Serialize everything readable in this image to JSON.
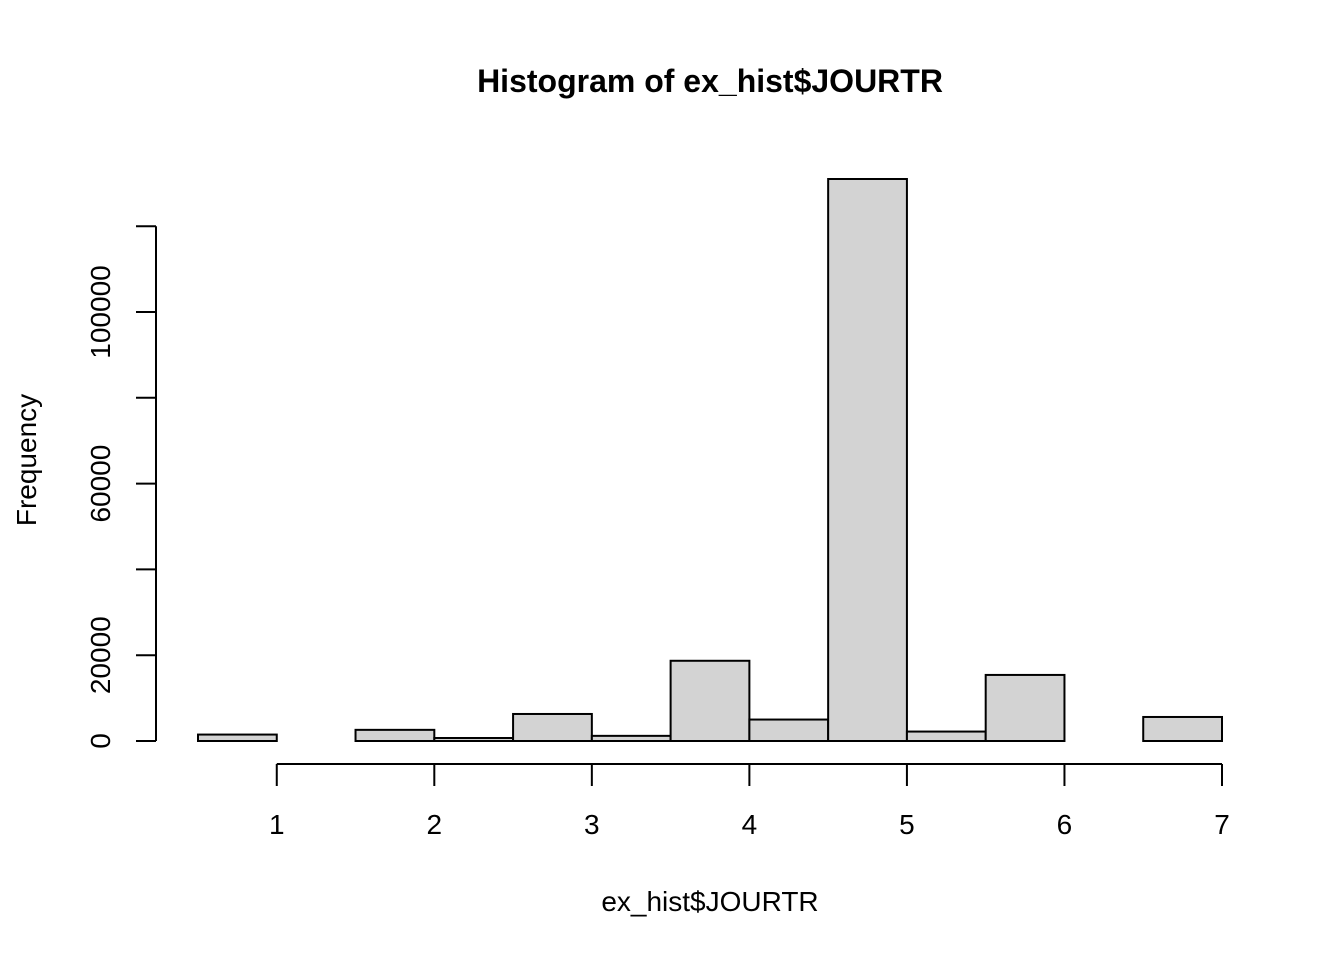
{
  "chart_data": {
    "type": "bar",
    "title": "Histogram of ex_hist$JOURTR",
    "xlabel": "ex_hist$JOURTR",
    "ylabel": "Frequency",
    "bins": [
      {
        "start": 0.5,
        "end": 1.0,
        "count": 1500
      },
      {
        "start": 1.0,
        "end": 1.5,
        "count": 0
      },
      {
        "start": 1.5,
        "end": 2.0,
        "count": 2600
      },
      {
        "start": 2.0,
        "end": 2.5,
        "count": 700
      },
      {
        "start": 2.5,
        "end": 3.0,
        "count": 6300
      },
      {
        "start": 3.0,
        "end": 3.5,
        "count": 1200
      },
      {
        "start": 3.5,
        "end": 4.0,
        "count": 18700
      },
      {
        "start": 4.0,
        "end": 4.5,
        "count": 5000
      },
      {
        "start": 4.5,
        "end": 5.0,
        "count": 131000
      },
      {
        "start": 5.0,
        "end": 5.5,
        "count": 2200
      },
      {
        "start": 5.5,
        "end": 6.0,
        "count": 15400
      },
      {
        "start": 6.0,
        "end": 6.5,
        "count": 0
      },
      {
        "start": 6.5,
        "end": 7.0,
        "count": 5600
      }
    ],
    "x_ticks": [
      1,
      2,
      3,
      4,
      5,
      6,
      7
    ],
    "x_tick_labels": [
      "1",
      "2",
      "3",
      "4",
      "5",
      "6",
      "7"
    ],
    "y_ticks": [
      0,
      20000,
      40000,
      60000,
      80000,
      100000,
      120000
    ],
    "y_tick_labels": [
      "0",
      "20000",
      "",
      "60000",
      "",
      "100000",
      ""
    ],
    "xlim": [
      0.5,
      7
    ],
    "ylim": [
      0,
      131000
    ],
    "grid": false,
    "colors": {
      "bar_fill": "#d3d3d3",
      "bar_stroke": "#000000"
    }
  }
}
